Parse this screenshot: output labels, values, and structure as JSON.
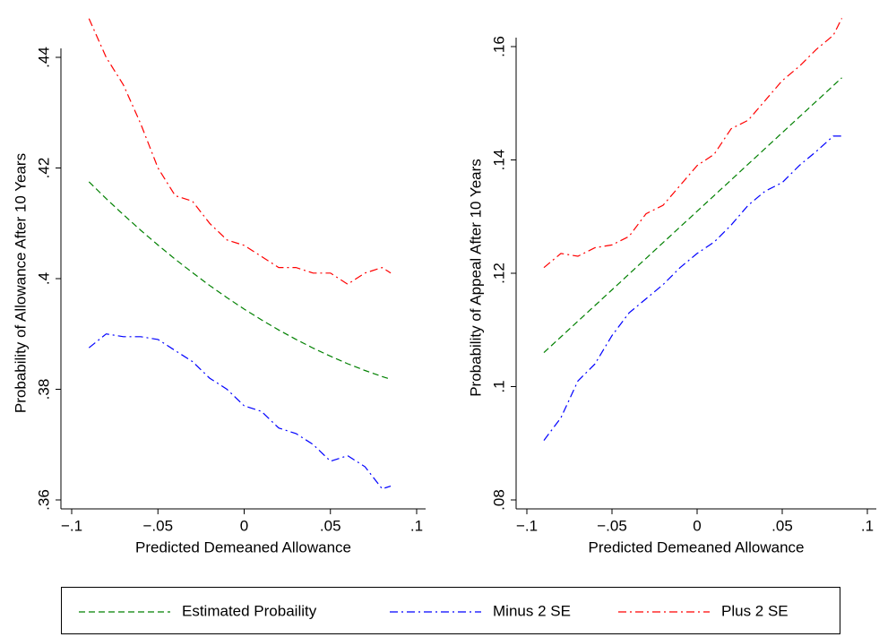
{
  "chart_data": [
    {
      "type": "line",
      "xlabel": "Predicted Demeaned Allowance",
      "ylabel": "Probability of Allowance After 10 Years",
      "x": [
        -0.09,
        -0.08,
        -0.07,
        -0.06,
        -0.05,
        -0.04,
        -0.03,
        -0.02,
        -0.01,
        0,
        0.01,
        0.02,
        0.03,
        0.04,
        0.05,
        0.06,
        0.07,
        0.08,
        0.085
      ],
      "xlim": [
        -0.1,
        0.1
      ],
      "xticks": [
        {
          "value": -0.1,
          "label": "−.1"
        },
        {
          "value": -0.05,
          "label": "−.05"
        },
        0,
        {
          "value": 0.05,
          "label": ".05"
        },
        {
          "value": 0.1,
          "label": ".1"
        }
      ],
      "ylim": [
        0.36,
        0.44
      ],
      "yticks": [
        {
          "value": 0.36,
          "label": ".36"
        },
        {
          "value": 0.38,
          "label": ".38"
        },
        {
          "value": 0.4,
          "label": ".4"
        },
        {
          "value": 0.42,
          "label": ".42"
        },
        {
          "value": 0.44,
          "label": ".44"
        }
      ],
      "series": [
        {
          "name": "Estimated Probaility",
          "color": "#008000",
          "linestyle": "dashed",
          "values": [
            0.4175,
            0.41446,
            0.41154,
            0.40874,
            0.40607,
            0.40351,
            0.40108,
            0.39876,
            0.39657,
            0.3945,
            0.39255,
            0.39072,
            0.38902,
            0.38743,
            0.38597,
            0.38462,
            0.3834,
            0.3823,
            0.3818
          ]
        },
        {
          "name": "Minus 2 SE",
          "color": "#0000ff",
          "linestyle": "dashdot",
          "values": [
            0.3875,
            0.39,
            0.3895,
            0.3895,
            0.389,
            0.387,
            0.385,
            0.382,
            0.38,
            0.377,
            0.376,
            0.373,
            0.372,
            0.37,
            0.367,
            0.368,
            0.366,
            0.362,
            0.3625
          ]
        },
        {
          "name": "Plus 2 SE",
          "color": "#ff0000",
          "linestyle": "dashdot",
          "values": [
            0.447,
            0.44,
            0.435,
            0.428,
            0.42,
            0.415,
            0.414,
            0.41,
            0.407,
            0.406,
            0.404,
            0.402,
            0.402,
            0.401,
            0.401,
            0.399,
            0.401,
            0.402,
            0.401
          ]
        }
      ]
    },
    {
      "type": "line",
      "xlabel": "Predicted Demeaned Allowance",
      "ylabel": "Probability of Appeal After 10 Years",
      "x": [
        -0.09,
        -0.08,
        -0.07,
        -0.06,
        -0.05,
        -0.04,
        -0.03,
        -0.02,
        -0.01,
        0,
        0.01,
        0.02,
        0.03,
        0.04,
        0.05,
        0.06,
        0.07,
        0.08,
        0.085
      ],
      "xlim": [
        -0.1,
        0.1
      ],
      "xticks": [
        {
          "value": -0.1,
          "label": "−.1"
        },
        {
          "value": -0.05,
          "label": "−.05"
        },
        0,
        {
          "value": 0.05,
          "label": ".05"
        },
        {
          "value": 0.1,
          "label": ".1"
        }
      ],
      "ylim": [
        0.08,
        0.16
      ],
      "yticks": [
        {
          "value": 0.08,
          "label": ".08"
        },
        {
          "value": 0.1,
          "label": ".1"
        },
        {
          "value": 0.12,
          "label": ".12"
        },
        {
          "value": 0.14,
          "label": ".14"
        },
        {
          "value": 0.16,
          "label": ".16"
        }
      ],
      "series": [
        {
          "color": "#008000",
          "linestyle": "dashed",
          "values": [
            0.106,
            0.10877,
            0.11154,
            0.11431,
            0.11708,
            0.11986,
            0.12263,
            0.1254,
            0.12817,
            0.13094,
            0.13371,
            0.13648,
            0.13925,
            0.14202,
            0.1448,
            0.14757,
            0.15034,
            0.15311,
            0.1545
          ]
        },
        {
          "color": "#0000ff",
          "linestyle": "dashdot",
          "values": [
            0.0905,
            0.0945,
            0.101,
            0.104,
            0.109,
            0.113,
            0.1155,
            0.118,
            0.121,
            0.1235,
            0.1255,
            0.1285,
            0.132,
            0.1345,
            0.136,
            0.139,
            0.1415,
            0.1442,
            0.1442
          ]
        },
        {
          "color": "#ff0000",
          "linestyle": "dashdot",
          "values": [
            0.121,
            0.1235,
            0.123,
            0.1245,
            0.125,
            0.1265,
            0.1305,
            0.132,
            0.1355,
            0.139,
            0.141,
            0.1455,
            0.147,
            0.1505,
            0.154,
            0.1565,
            0.1595,
            0.162,
            0.165
          ]
        }
      ]
    }
  ]
}
